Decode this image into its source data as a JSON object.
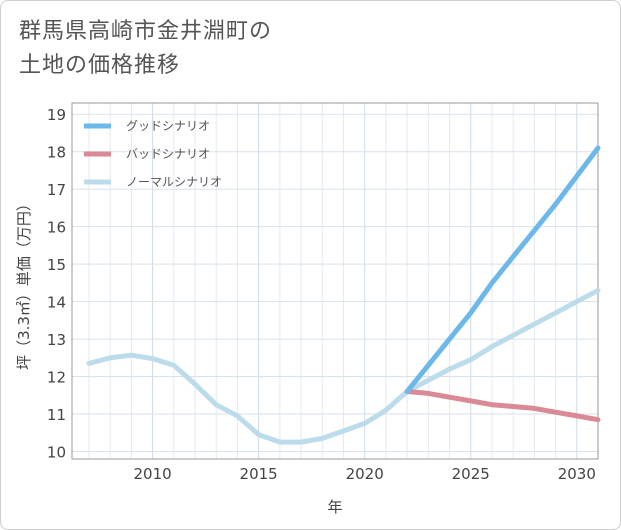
{
  "title": {
    "line1": "群馬県高崎市金井淵町の",
    "line2": "土地の価格推移"
  },
  "chart_data": {
    "type": "line",
    "xlabel": "年",
    "ylabel": "坪（3.3㎡）単価（万円）",
    "xlim": [
      2006.2,
      2031
    ],
    "ylim": [
      9.8,
      19.3
    ],
    "xticks": [
      2010,
      2015,
      2020,
      2025,
      2030
    ],
    "yticks": [
      10,
      11,
      12,
      13,
      14,
      15,
      16,
      17,
      18,
      19
    ],
    "grid": true,
    "legend_position": "top-left",
    "series": [
      {
        "name": "グッドシナリオ",
        "color": "#6cb8ea",
        "x": [
          2022,
          2023,
          2024,
          2025,
          2026,
          2027,
          2028,
          2029,
          2030,
          2031
        ],
        "y": [
          11.6,
          12.3,
          13.0,
          13.7,
          14.5,
          15.2,
          15.9,
          16.6,
          17.35,
          18.1
        ]
      },
      {
        "name": "バッドシナリオ",
        "color": "#d98a95",
        "x": [
          2022,
          2023,
          2024,
          2025,
          2026,
          2027,
          2028,
          2029,
          2030,
          2031
        ],
        "y": [
          11.6,
          11.55,
          11.45,
          11.35,
          11.25,
          11.2,
          11.15,
          11.05,
          10.95,
          10.85
        ]
      },
      {
        "name": "ノーマルシナリオ",
        "color": "#bcdcec",
        "x": [
          2007,
          2008,
          2009,
          2010,
          2011,
          2012,
          2013,
          2014,
          2015,
          2016,
          2017,
          2018,
          2019,
          2020,
          2021,
          2022,
          2023,
          2024,
          2025,
          2026,
          2027,
          2028,
          2029,
          2030,
          2031
        ],
        "y": [
          12.35,
          12.5,
          12.57,
          12.48,
          12.3,
          11.8,
          11.25,
          10.95,
          10.45,
          10.25,
          10.25,
          10.35,
          10.55,
          10.75,
          11.1,
          11.6,
          11.9,
          12.2,
          12.45,
          12.8,
          13.1,
          13.4,
          13.7,
          14.0,
          14.3
        ]
      }
    ]
  }
}
